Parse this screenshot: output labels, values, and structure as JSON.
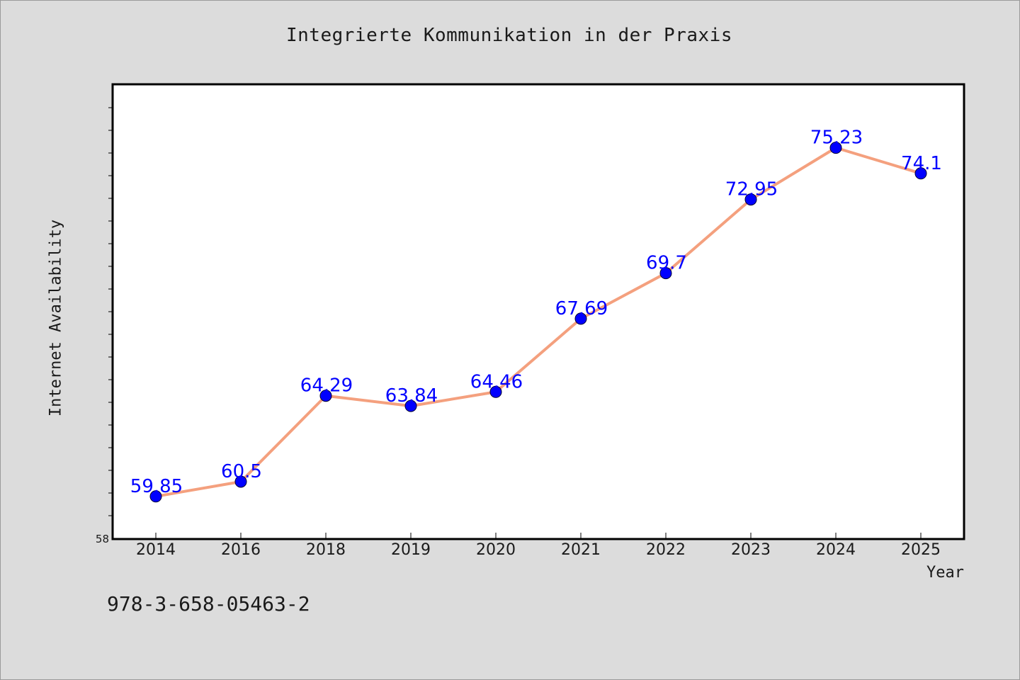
{
  "chart_data": {
    "type": "line",
    "title": "Integrierte Kommunikation in der Praxis",
    "xlabel": "Year",
    "ylabel": "Internet Availability",
    "categories": [
      "2014",
      "2016",
      "2018",
      "2019",
      "2020",
      "2021",
      "2022",
      "2023",
      "2024",
      "2025"
    ],
    "values": [
      59.85,
      60.5,
      64.29,
      63.84,
      64.46,
      67.69,
      69.7,
      72.95,
      75.23,
      74.1
    ],
    "data_labels": [
      "59.85",
      "60.5",
      "64.29",
      "63.84",
      "64.46",
      "67.69",
      "69.7",
      "72.95",
      "75.23",
      "74.1"
    ],
    "ylim": [
      58,
      78
    ],
    "y_tick_labels": [
      "58"
    ],
    "line_color": "#f4a07e",
    "marker_color": "#0000ff",
    "label_color": "#0000ff",
    "grid": false,
    "legend": "none"
  },
  "footer": {
    "code": "978-3-658-05463-2"
  }
}
